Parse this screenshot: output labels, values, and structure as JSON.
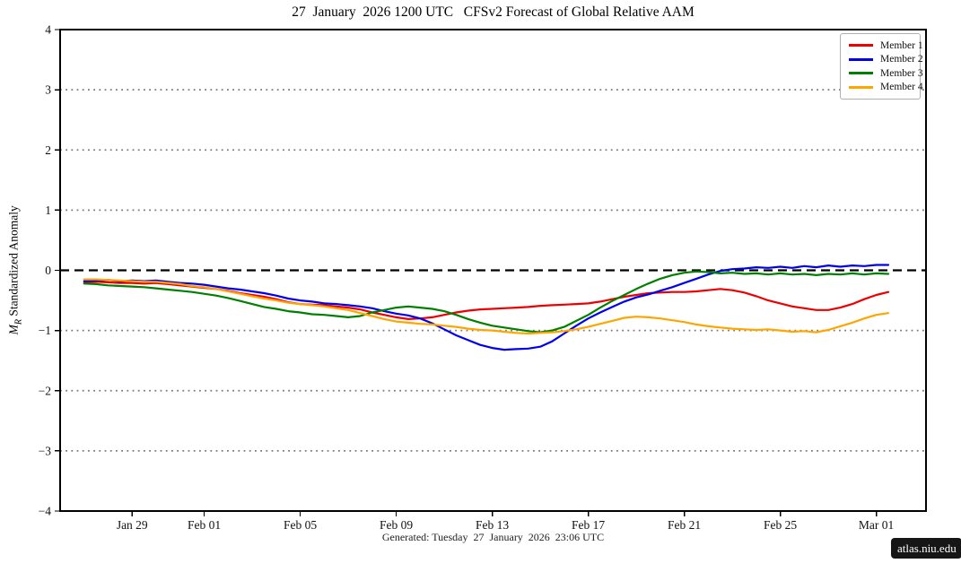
{
  "title": "27  January  2026 1200 UTC   CFSv2 Forecast of Global Relative AAM",
  "footer": "Generated: Tuesday  27  January  2026  23:06 UTC",
  "watermark": "atlas.niu.edu",
  "chart_data": {
    "type": "line",
    "title": "27  January  2026 1200 UTC   CFSv2 Forecast of Global Relative AAM",
    "ylabel": {
      "var": "M",
      "sub": "R",
      "rest": " Standardized Anomaly"
    },
    "xlabel": "",
    "ylim": [
      -4,
      4
    ],
    "xlim_days_after_jan29": [
      -3,
      33.07
    ],
    "grid": "horizontal dotted gray lines at integer values",
    "zero_line": "horizontal dashed black line at 0",
    "legend_position": "upper right",
    "ytick_values": [
      4,
      3,
      2,
      1,
      0,
      -1,
      -2,
      -3,
      -4
    ],
    "ytick_labels": [
      "4",
      "3",
      "2",
      "1",
      "0",
      "−1",
      "−2",
      "−3",
      "−4"
    ],
    "gridline_values": [
      3,
      2,
      1,
      -1,
      -2,
      -3
    ],
    "xticks": [
      {
        "day": 0,
        "label": "Jan 29"
      },
      {
        "day": 3,
        "label": "Feb 01"
      },
      {
        "day": 7,
        "label": "Feb 05"
      },
      {
        "day": 11,
        "label": "Feb 09"
      },
      {
        "day": 15,
        "label": "Feb 13"
      },
      {
        "day": 19,
        "label": "Feb 17"
      },
      {
        "day": 23,
        "label": "Feb 21"
      },
      {
        "day": 27,
        "label": "Feb 25"
      },
      {
        "day": 31,
        "label": "Mar 01"
      }
    ],
    "x_days": [
      -2,
      -1.5,
      -1,
      -0.5,
      0,
      0.5,
      1,
      1.5,
      2,
      2.5,
      3,
      3.5,
      4,
      4.5,
      5,
      5.5,
      6,
      6.5,
      7,
      7.5,
      8,
      8.5,
      9,
      9.5,
      10,
      10.5,
      11,
      11.5,
      12,
      12.5,
      13,
      13.5,
      14,
      14.5,
      15,
      15.5,
      16,
      16.5,
      17,
      17.5,
      18,
      18.5,
      19,
      19.5,
      20,
      20.5,
      21,
      21.5,
      22,
      22.5,
      23,
      23.5,
      24,
      24.5,
      25,
      25.5,
      26,
      26.5,
      27,
      27.5,
      28,
      28.5,
      29,
      29.5,
      30,
      30.5,
      31,
      31.5
    ],
    "series": [
      {
        "name": "Member 1",
        "color": "#ee0000",
        "values": [
          -0.2,
          -0.19,
          -0.2,
          -0.21,
          -0.21,
          -0.22,
          -0.21,
          -0.23,
          -0.25,
          -0.27,
          -0.29,
          -0.31,
          -0.34,
          -0.38,
          -0.41,
          -0.44,
          -0.48,
          -0.53,
          -0.56,
          -0.57,
          -0.58,
          -0.6,
          -0.62,
          -0.65,
          -0.7,
          -0.74,
          -0.78,
          -0.81,
          -0.8,
          -0.78,
          -0.74,
          -0.7,
          -0.67,
          -0.65,
          -0.64,
          -0.63,
          -0.62,
          -0.61,
          -0.59,
          -0.58,
          -0.57,
          -0.56,
          -0.55,
          -0.52,
          -0.48,
          -0.44,
          -0.41,
          -0.38,
          -0.37,
          -0.36,
          -0.36,
          -0.35,
          -0.33,
          -0.31,
          -0.33,
          -0.37,
          -0.43,
          -0.5,
          -0.55,
          -0.6,
          -0.63,
          -0.66,
          -0.66,
          -0.62,
          -0.56,
          -0.48,
          -0.41,
          -0.36
        ]
      },
      {
        "name": "Member 2",
        "color": "#0000ee",
        "values": [
          -0.18,
          -0.17,
          -0.16,
          -0.18,
          -0.17,
          -0.18,
          -0.17,
          -0.19,
          -0.21,
          -0.22,
          -0.24,
          -0.27,
          -0.3,
          -0.32,
          -0.35,
          -0.38,
          -0.42,
          -0.47,
          -0.5,
          -0.52,
          -0.55,
          -0.56,
          -0.58,
          -0.6,
          -0.63,
          -0.68,
          -0.72,
          -0.75,
          -0.8,
          -0.88,
          -0.98,
          -1.08,
          -1.16,
          -1.24,
          -1.29,
          -1.32,
          -1.31,
          -1.3,
          -1.27,
          -1.18,
          -1.05,
          -0.92,
          -0.8,
          -0.7,
          -0.61,
          -0.52,
          -0.45,
          -0.4,
          -0.34,
          -0.28,
          -0.21,
          -0.14,
          -0.07,
          -0.01,
          0.02,
          0.03,
          0.05,
          0.04,
          0.06,
          0.04,
          0.07,
          0.05,
          0.08,
          0.06,
          0.08,
          0.07,
          0.09,
          0.09
        ]
      },
      {
        "name": "Member 3",
        "color": "#008000",
        "values": [
          -0.22,
          -0.23,
          -0.25,
          -0.26,
          -0.27,
          -0.28,
          -0.3,
          -0.32,
          -0.34,
          -0.36,
          -0.39,
          -0.42,
          -0.46,
          -0.51,
          -0.56,
          -0.61,
          -0.64,
          -0.68,
          -0.7,
          -0.73,
          -0.74,
          -0.76,
          -0.78,
          -0.76,
          -0.7,
          -0.66,
          -0.62,
          -0.6,
          -0.62,
          -0.64,
          -0.68,
          -0.74,
          -0.81,
          -0.87,
          -0.92,
          -0.95,
          -0.98,
          -1.01,
          -1.03,
          -1.0,
          -0.94,
          -0.84,
          -0.74,
          -0.62,
          -0.51,
          -0.41,
          -0.31,
          -0.22,
          -0.14,
          -0.08,
          -0.04,
          -0.02,
          -0.03,
          -0.05,
          -0.04,
          -0.06,
          -0.05,
          -0.07,
          -0.05,
          -0.07,
          -0.06,
          -0.08,
          -0.06,
          -0.07,
          -0.05,
          -0.07,
          -0.05,
          -0.06
        ]
      },
      {
        "name": "Member 4",
        "color": "#ffa500",
        "values": [
          -0.15,
          -0.15,
          -0.16,
          -0.17,
          -0.18,
          -0.19,
          -0.19,
          -0.21,
          -0.23,
          -0.26,
          -0.28,
          -0.31,
          -0.35,
          -0.39,
          -0.43,
          -0.47,
          -0.5,
          -0.54,
          -0.56,
          -0.58,
          -0.6,
          -0.63,
          -0.66,
          -0.71,
          -0.76,
          -0.81,
          -0.85,
          -0.87,
          -0.89,
          -0.9,
          -0.92,
          -0.94,
          -0.97,
          -0.99,
          -1.0,
          -1.02,
          -1.04,
          -1.05,
          -1.04,
          -1.03,
          -1.01,
          -0.98,
          -0.94,
          -0.89,
          -0.84,
          -0.79,
          -0.77,
          -0.78,
          -0.8,
          -0.83,
          -0.86,
          -0.9,
          -0.93,
          -0.95,
          -0.97,
          -0.98,
          -0.99,
          -0.98,
          -1.0,
          -1.02,
          -1.01,
          -1.03,
          -0.99,
          -0.93,
          -0.87,
          -0.8,
          -0.74,
          -0.71
        ]
      }
    ]
  }
}
